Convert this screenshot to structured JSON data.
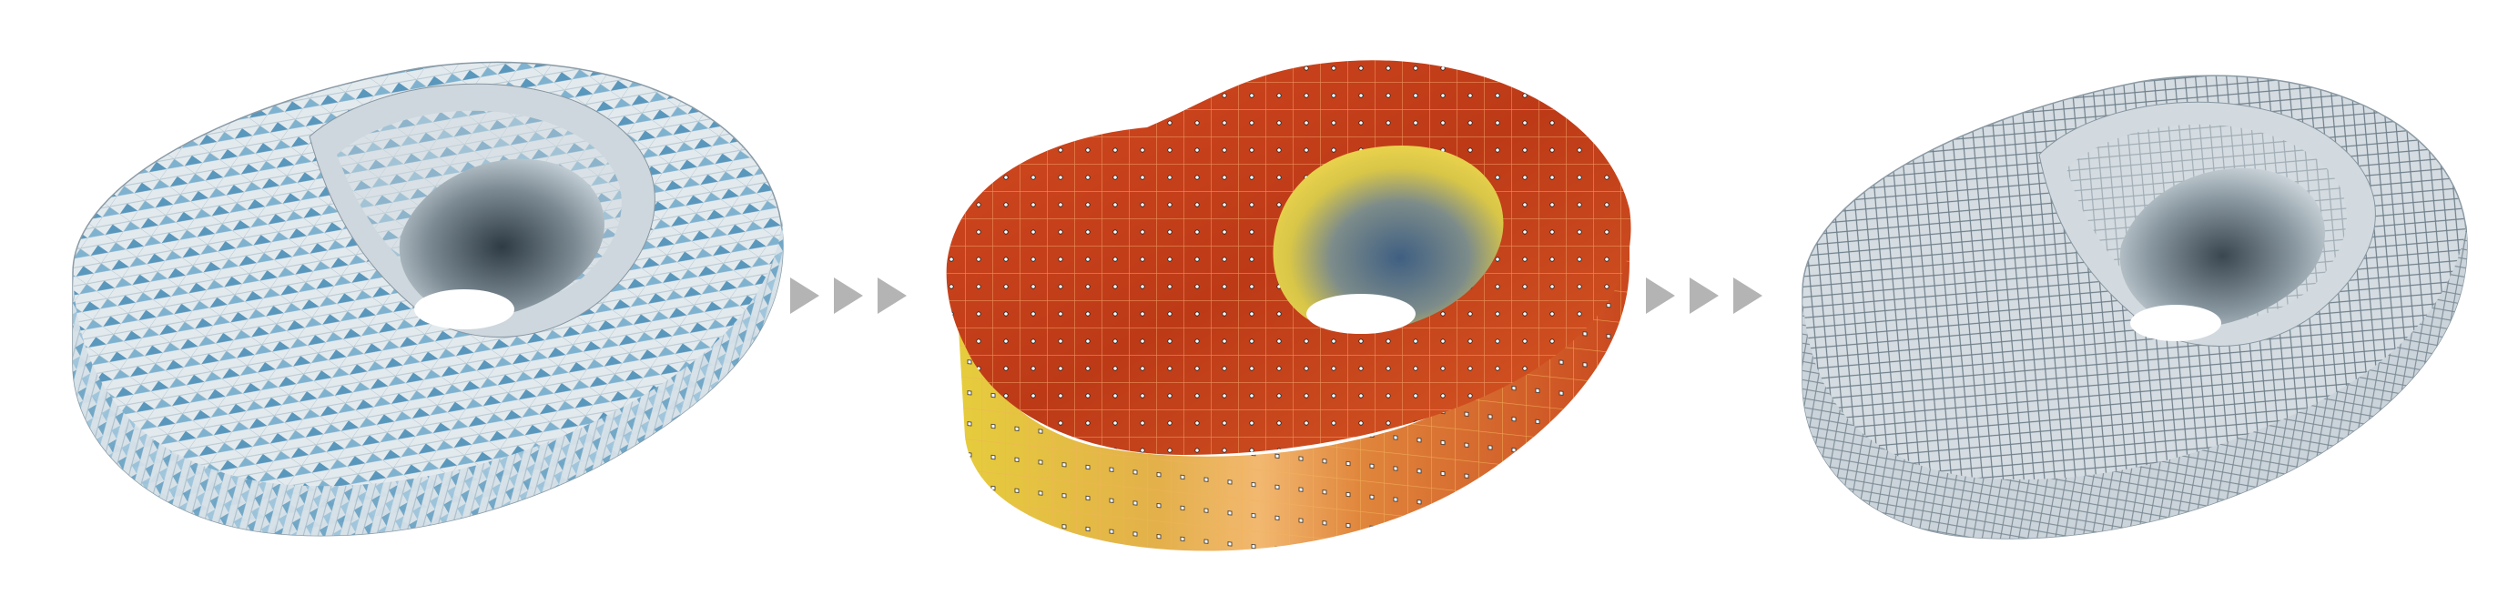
{
  "figure": {
    "stages": [
      {
        "id": "stage-1",
        "description_key": "tiled-surface"
      },
      {
        "id": "stage-2",
        "description_key": "quad-mesh-with-vertices"
      },
      {
        "id": "stage-3",
        "description_key": "diamond-tiled-surface"
      }
    ],
    "arrow_groups": [
      {
        "count": 3
      },
      {
        "count": 3
      }
    ]
  },
  "colors": {
    "tile_blue": "#6fa9c9",
    "tile_light": "#dfe7ec",
    "mesh_red": "#c8401c",
    "mesh_orange": "#e8873a",
    "mesh_yellow": "#e8cc44",
    "mesh_blue": "#4a6a8a",
    "mesh_line": "#f4a060",
    "arrow_gray": "#b0b0b0",
    "surface_gray": "#c9d2d8",
    "surface_dark": "#6d7d88"
  }
}
